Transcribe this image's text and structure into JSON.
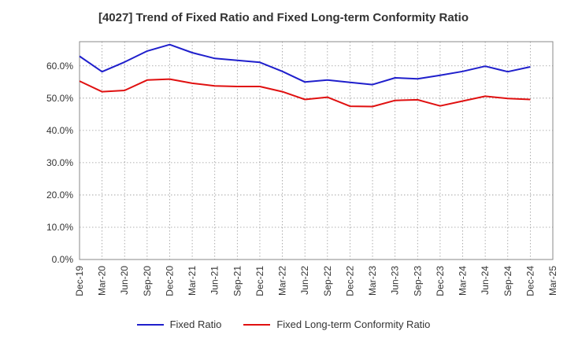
{
  "chart_data": {
    "type": "line",
    "title": "[4027]  Trend of Fixed Ratio and Fixed Long-term Conformity Ratio",
    "xlabel": "",
    "ylabel": "",
    "ylim": [
      0,
      67.5
    ],
    "yticks": [
      "0.0%",
      "10.0%",
      "20.0%",
      "30.0%",
      "40.0%",
      "50.0%",
      "60.0%"
    ],
    "ytick_values": [
      0,
      10,
      20,
      30,
      40,
      50,
      60
    ],
    "x_tick_labels": [
      "Dec-19",
      "Mar-20",
      "Jun-20",
      "Sep-20",
      "Dec-20",
      "Mar-21",
      "Jun-21",
      "Sep-21",
      "Dec-21",
      "Mar-22",
      "Jun-22",
      "Sep-22",
      "Dec-22",
      "Mar-23",
      "Jun-23",
      "Sep-23",
      "Dec-23",
      "Mar-24",
      "Jun-24",
      "Sep-24",
      "Dec-24",
      "Mar-25"
    ],
    "x_tick_label_every": 1,
    "categories": [
      "Dec-19",
      "Mar-20",
      "Jun-20",
      "Sep-20",
      "Dec-20",
      "Mar-21",
      "Jun-21",
      "Sep-21",
      "Dec-21",
      "Mar-22",
      "Jun-22",
      "Sep-22",
      "Dec-22",
      "Mar-23",
      "Jun-23",
      "Sep-23",
      "Dec-23",
      "Mar-24",
      "Jun-24",
      "Sep-24",
      "Dec-24"
    ],
    "grid": true,
    "legend_position": "bottom-center",
    "series": [
      {
        "name": "Fixed Ratio",
        "color": "#1f1fcc",
        "values": [
          63.0,
          58.2,
          61.2,
          64.6,
          66.6,
          64.1,
          62.3,
          61.7,
          61.1,
          58.3,
          55.0,
          55.6,
          54.9,
          54.2,
          56.3,
          56.0,
          57.1,
          58.3,
          59.9,
          58.2,
          59.7
        ]
      },
      {
        "name": "Fixed Long-term Conformity Ratio",
        "color": "#e01010",
        "values": [
          55.3,
          52.0,
          52.4,
          55.6,
          55.9,
          54.6,
          53.8,
          53.6,
          53.6,
          52.0,
          49.6,
          50.3,
          47.5,
          47.4,
          49.3,
          49.5,
          47.6,
          49.1,
          50.6,
          49.9,
          49.6
        ]
      }
    ]
  }
}
